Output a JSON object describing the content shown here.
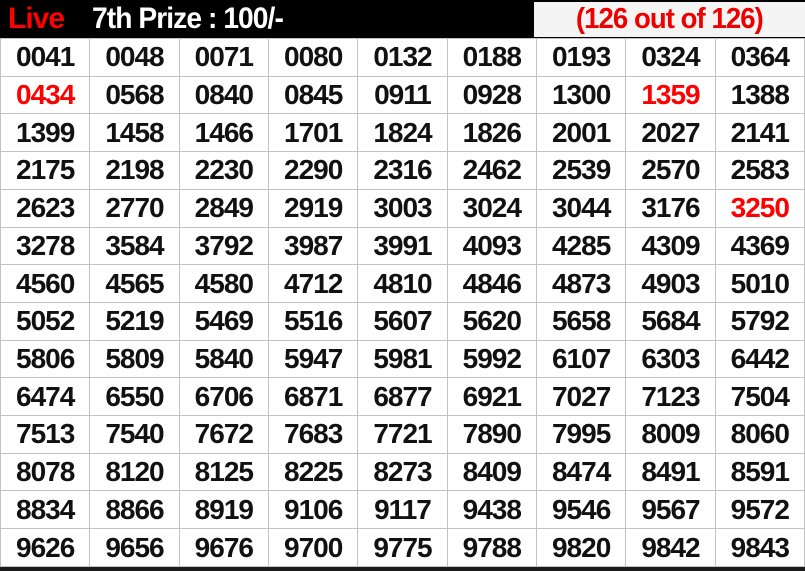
{
  "header": {
    "live_label": "Live",
    "title": "7th Prize : 100/-",
    "counter": "(126 out of 126)"
  },
  "colors": {
    "header_bg": "#000000",
    "live_red": "#ff0000",
    "title_white": "#ffffff",
    "counter_bg": "#f4f4f4",
    "counter_text": "#ee0000",
    "number_black": "#111111",
    "number_red": "#ff0000",
    "cell_border": "#c2c2c2",
    "cell_bg": "#ffffff",
    "bottom_bar": "#1c1c1c"
  },
  "grid": {
    "columns": 9,
    "rows": [
      [
        "0041",
        "0048",
        "0071",
        "0080",
        "0132",
        "0188",
        "0193",
        "0324",
        "0364"
      ],
      [
        "0434",
        "0568",
        "0840",
        "0845",
        "0911",
        "0928",
        "1300",
        "1359",
        "1388"
      ],
      [
        "1399",
        "1458",
        "1466",
        "1701",
        "1824",
        "1826",
        "2001",
        "2027",
        "2141"
      ],
      [
        "2175",
        "2198",
        "2230",
        "2290",
        "2316",
        "2462",
        "2539",
        "2570",
        "2583"
      ],
      [
        "2623",
        "2770",
        "2849",
        "2919",
        "3003",
        "3024",
        "3044",
        "3176",
        "3250"
      ],
      [
        "3278",
        "3584",
        "3792",
        "3987",
        "3991",
        "4093",
        "4285",
        "4309",
        "4369"
      ],
      [
        "4560",
        "4565",
        "4580",
        "4712",
        "4810",
        "4846",
        "4873",
        "4903",
        "5010"
      ],
      [
        "5052",
        "5219",
        "5469",
        "5516",
        "5607",
        "5620",
        "5658",
        "5684",
        "5792"
      ],
      [
        "5806",
        "5809",
        "5840",
        "5947",
        "5981",
        "5992",
        "6107",
        "6303",
        "6442"
      ],
      [
        "6474",
        "6550",
        "6706",
        "6871",
        "6877",
        "6921",
        "7027",
        "7123",
        "7504"
      ],
      [
        "7513",
        "7540",
        "7672",
        "7683",
        "7721",
        "7890",
        "7995",
        "8009",
        "8060"
      ],
      [
        "8078",
        "8120",
        "8125",
        "8225",
        "8273",
        "8409",
        "8474",
        "8491",
        "8591"
      ],
      [
        "8834",
        "8866",
        "8919",
        "9106",
        "9117",
        "9438",
        "9546",
        "9567",
        "9572"
      ],
      [
        "9626",
        "9656",
        "9676",
        "9700",
        "9775",
        "9788",
        "9820",
        "9842",
        "9843"
      ]
    ],
    "highlighted_numbers": [
      "0434",
      "1359",
      "3250"
    ]
  }
}
